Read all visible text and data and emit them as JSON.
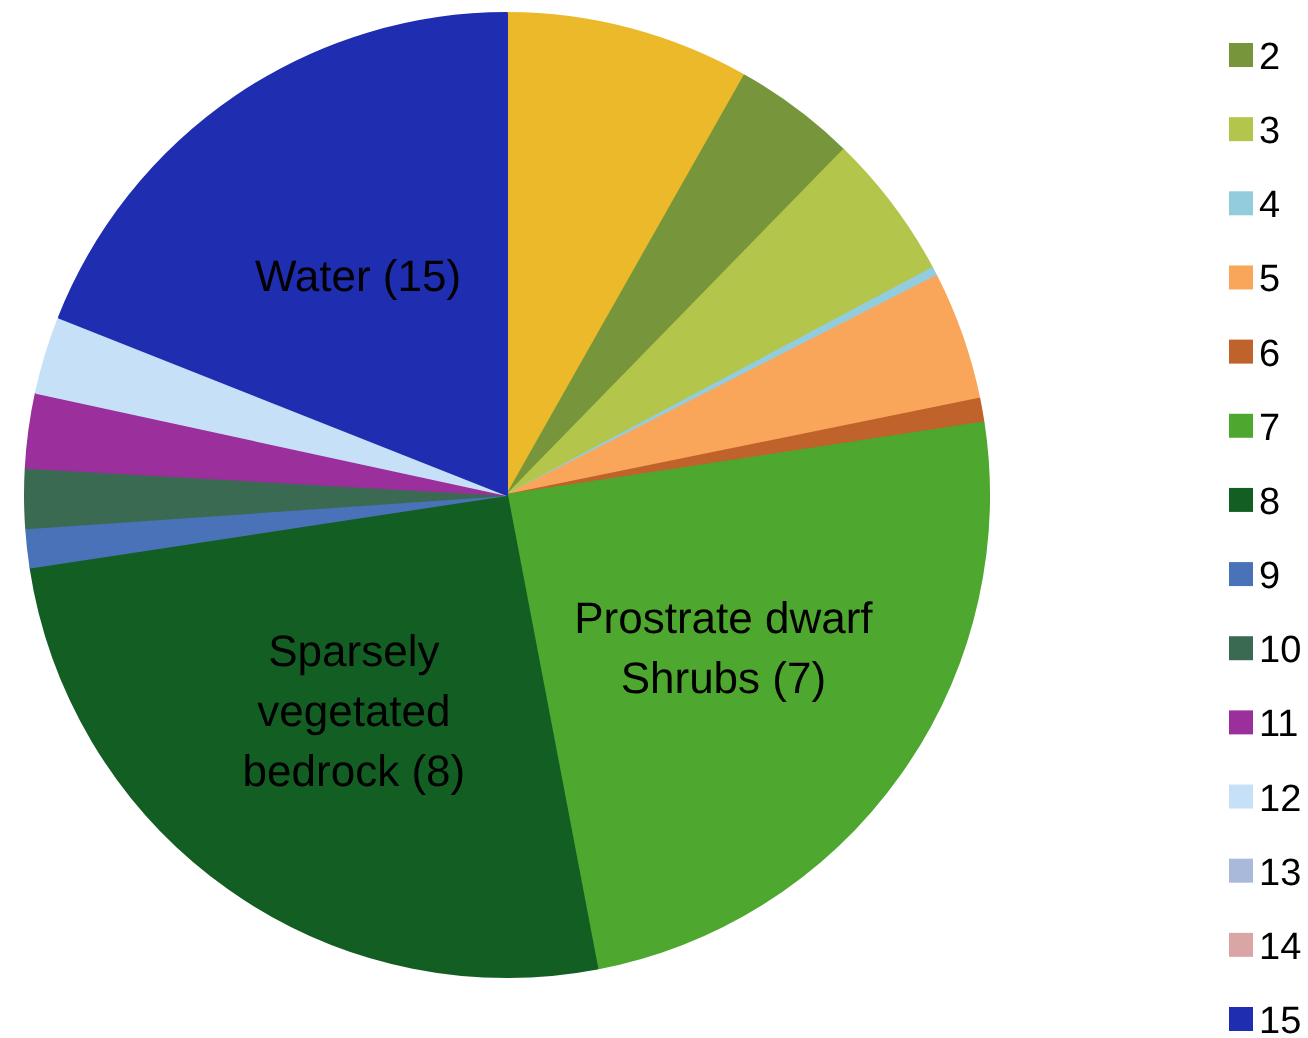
{
  "chart_data": {
    "type": "pie",
    "categories": [
      null,
      "2",
      "3",
      "4",
      "5",
      "6",
      "7",
      "8",
      "9",
      "10",
      "11",
      "12",
      "13",
      "14",
      "15"
    ],
    "values": [
      8.2,
      4.1,
      4.9,
      0.3,
      4.3,
      0.8,
      24.4,
      25.6,
      1.3,
      2.0,
      2.5,
      2.6,
      0,
      0,
      19.0
    ],
    "colors": [
      "#ecb92a",
      "#77963b",
      "#b3c54a",
      "#93cddd",
      "#f9a65a",
      "#c0622b",
      "#4ea72e",
      "#135e23",
      "#4a72b8",
      "#3a6b52",
      "#9b2f9b",
      "#c6e0f8",
      "#a8b9d9",
      "#d9a5a5",
      "#1f2db0"
    ],
    "annotations": [
      {
        "text": "Water (15)",
        "x": "15"
      },
      {
        "text": "Prostrate dwarf\nShrubs (7)",
        "x": "7"
      },
      {
        "text": "Sparsely\nvegetated\nbedrock (8)",
        "x": "8"
      }
    ],
    "legend": "right"
  }
}
